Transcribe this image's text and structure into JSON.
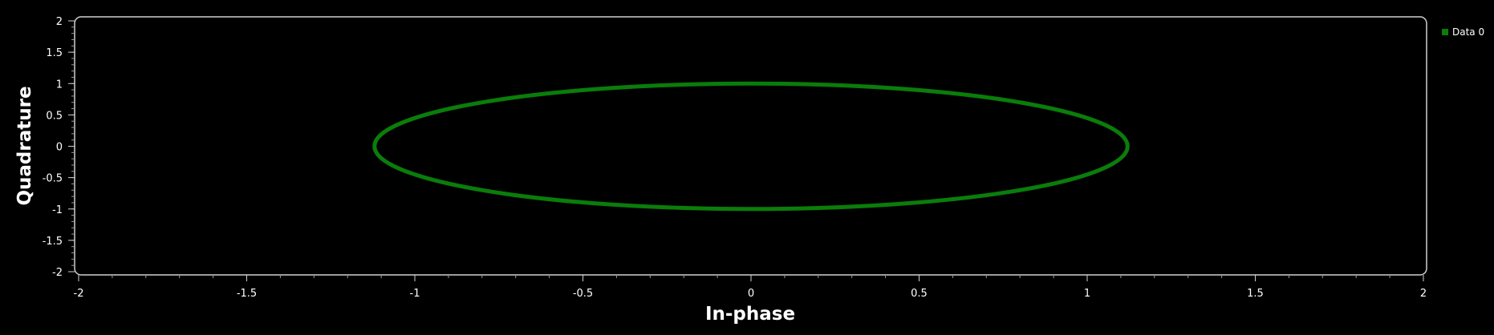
{
  "chart_data": {
    "type": "scatter",
    "title": "",
    "xlabel": "In-phase",
    "ylabel": "Quadrature",
    "xlim": [
      -2,
      2
    ],
    "ylim": [
      -2,
      2
    ],
    "grid": false,
    "legend_position": "top-right",
    "x_ticks": [
      -2,
      -1.5,
      -1,
      -0.5,
      0,
      0.5,
      1,
      1.5,
      2
    ],
    "y_ticks": [
      2,
      1.5,
      1,
      0.5,
      0,
      -0.5,
      -1,
      -1.5,
      -2
    ],
    "series": [
      {
        "name": "Data 0",
        "color": "#0a7d0a",
        "shape": "ellipse",
        "center": [
          0,
          0
        ],
        "x_radius": 1.12,
        "y_radius": 1.0
      }
    ]
  }
}
